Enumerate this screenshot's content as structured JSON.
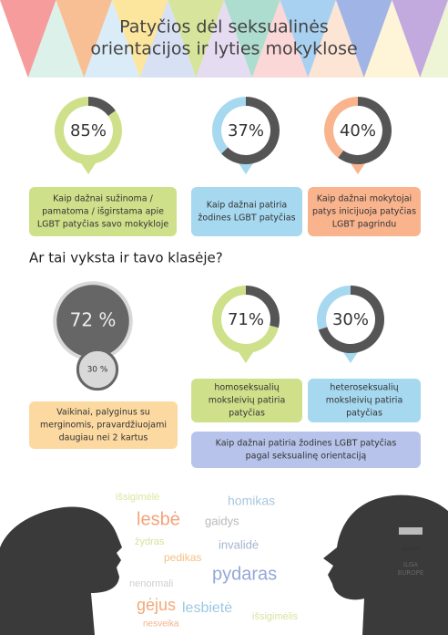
{
  "header": {
    "title_lines": [
      "Patyčios dėl seksualinės",
      "orientacijos ir lyties mokyklose"
    ]
  },
  "stats": [
    {
      "value": 85,
      "label": "85%",
      "caption": [
        "Kaip dažnai sužinoma /",
        "pamatoma / išgirstama apie",
        "LGBT patyčias savo mokykloje"
      ]
    },
    {
      "value": 37,
      "label": "37%",
      "caption": [
        "Kaip dažnai patiria",
        "žodines LGBT patyčias"
      ]
    },
    {
      "value": 40,
      "label": "40%",
      "caption": [
        "Kaip dažnai mokytojai",
        "patys inicijuoja patyčias",
        "LGBT pagrindu"
      ]
    }
  ],
  "question": "Ar tai vyksta ir tavo klasėje?",
  "comparison": {
    "boys": {
      "value": 72,
      "label": "72 %"
    },
    "girls": {
      "value": 30,
      "label": "30 %"
    },
    "caption": [
      "Vaikinai, palyginus su",
      "merginomis, pravardžiuojami",
      "daugiau nei 2 kartus"
    ]
  },
  "orientation": [
    {
      "value": 71,
      "label": "71%",
      "caption": [
        "homoseksualių",
        "moksleivių patiria",
        "patyčias"
      ]
    },
    {
      "value": 30,
      "label": "30%",
      "caption": [
        "heteroseksualių",
        "moksleivių patiria",
        "patyčias"
      ]
    }
  ],
  "orientation_caption": [
    "Kaip dažnai patiria žodines LGBT patyčias",
    "pagal seksualinę orientaciją"
  ],
  "words": [
    "išsigimėlė",
    "homikas",
    "lesbė",
    "gaidys",
    "žydras",
    "invalidė",
    "pedikas",
    "pydaras",
    "nenormali",
    "gėjus",
    "lesbietė",
    "išsigimėlis",
    "nesveika"
  ],
  "logos": [
    "NAMAI",
    "ILGA",
    "EUROPE"
  ]
}
